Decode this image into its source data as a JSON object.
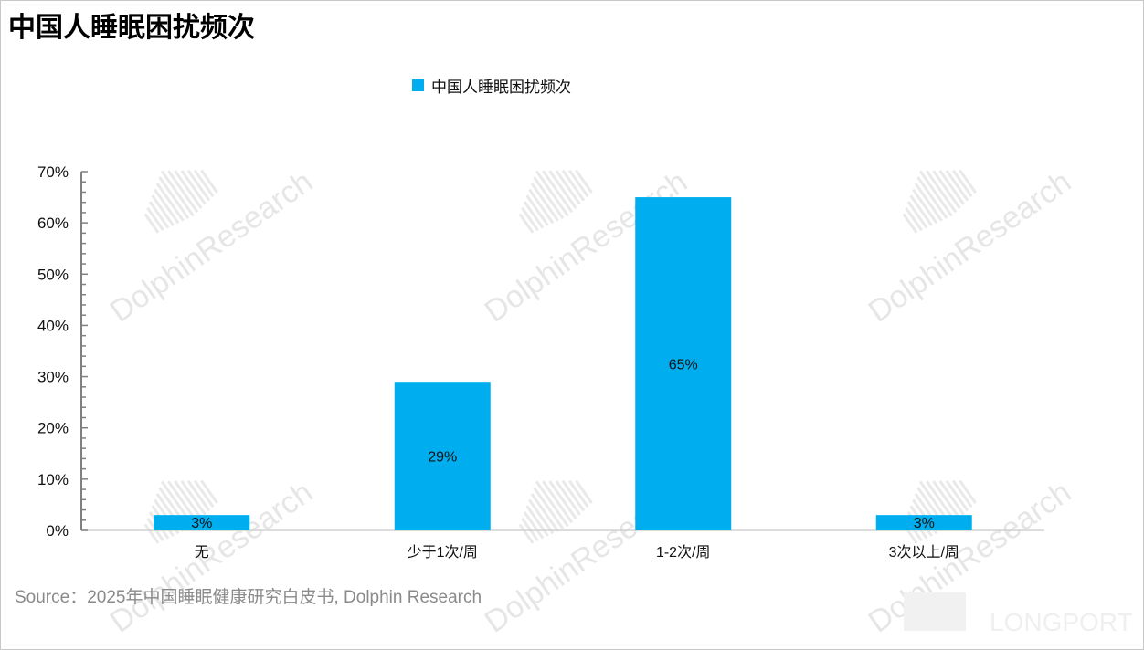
{
  "title": "中国人睡眠困扰频次",
  "source": "Source：2025年中国睡眠健康研究白皮书, Dolphin Research",
  "watermark": "DolphinResearch",
  "brand_logo": "LONGPORT",
  "colors": {
    "bar": "#00aeef",
    "axis": "#808080"
  },
  "chart_data": {
    "type": "bar",
    "title": "中国人睡眠困扰频次",
    "legend": [
      "中国人睡眠困扰频次"
    ],
    "legend_position": "top-center",
    "categories": [
      "无",
      "少于1次/周",
      "1-2次/周",
      "3次以上/周"
    ],
    "values": [
      3,
      29,
      65,
      3
    ],
    "data_labels": [
      "3%",
      "29%",
      "65%",
      "3%"
    ],
    "yticks": [
      "0%",
      "10%",
      "20%",
      "30%",
      "40%",
      "50%",
      "60%",
      "70%"
    ],
    "ylim": [
      0,
      70
    ],
    "xlabel": "",
    "ylabel": "",
    "grid": false
  }
}
